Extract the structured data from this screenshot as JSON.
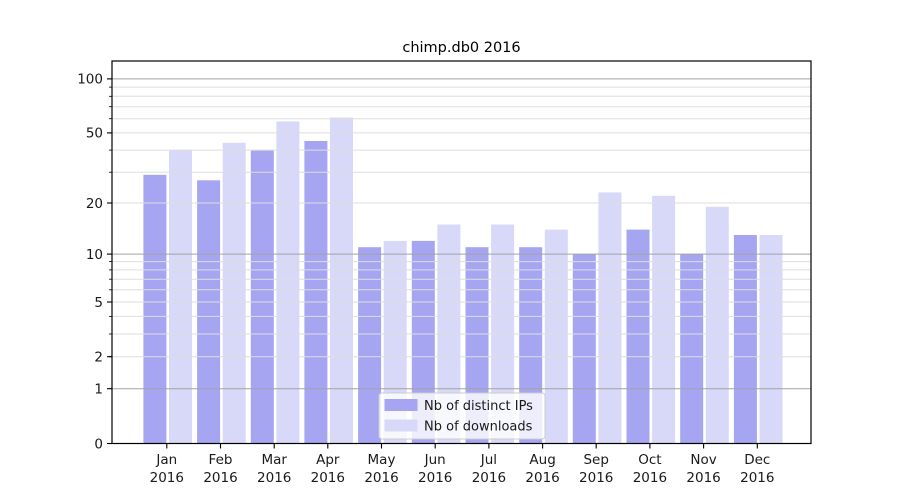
{
  "title": "chimp.db0 2016",
  "chart_data": {
    "type": "bar",
    "title": "chimp.db0 2016",
    "categories": [
      "Jan",
      "Feb",
      "Mar",
      "Apr",
      "May",
      "Jun",
      "Jul",
      "Aug",
      "Sep",
      "Oct",
      "Nov",
      "Dec"
    ],
    "year": "2016",
    "series": [
      {
        "name": "Nb of distinct IPs",
        "color": "#a5a5f1",
        "values": [
          29,
          27,
          40,
          45,
          11,
          12,
          11,
          11,
          10,
          14,
          10,
          13
        ]
      },
      {
        "name": "Nb of downloads",
        "color": "#d8d8f8",
        "values": [
          40,
          44,
          58,
          61,
          12,
          15,
          15,
          14,
          23,
          22,
          19,
          13
        ]
      }
    ],
    "y_scale": "log(1+x)",
    "y_ticks": [
      0,
      1,
      2,
      5,
      10,
      20,
      50,
      100
    ],
    "y_major_gridlines": [
      1,
      10,
      100
    ],
    "y_minor_gridlines": [
      2,
      3,
      4,
      5,
      6,
      7,
      8,
      9,
      20,
      30,
      40,
      50,
      60,
      70,
      80,
      90
    ],
    "ylim": [
      0,
      126
    ],
    "grid": true,
    "legend_position": "lower center",
    "legend_entries": [
      "Nb of distinct IPs",
      "Nb of downloads"
    ],
    "colors": {
      "background": "#ffffff",
      "axis": "#000000",
      "text": "#1a1a1a",
      "major_grid": "#a3a3a3",
      "minor_grid": "#dedede",
      "legend_border": "#cccccc",
      "legend_background": "#ffffff"
    }
  }
}
